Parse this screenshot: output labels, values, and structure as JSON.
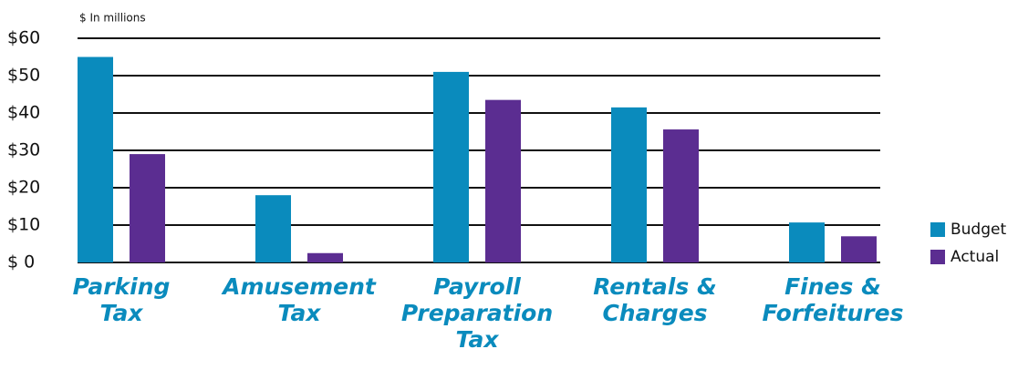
{
  "chart_data": {
    "type": "bar",
    "subtitle": "$ In millions",
    "categories": [
      "Parking\nTax",
      "Amusement\nTax",
      "Payroll\nPreparation\nTax",
      "Rentals &\nCharges",
      "Fines &\nForfeitures"
    ],
    "series": [
      {
        "name": "Budget",
        "color": "#0a8bbd",
        "values": [
          55,
          18,
          51,
          41.5,
          10.7
        ]
      },
      {
        "name": "Actual",
        "color": "#5b2d91",
        "values": [
          29,
          2.5,
          43.5,
          35.6,
          7
        ]
      }
    ],
    "ylim": [
      0,
      60
    ],
    "yticks": [
      {
        "value": 0,
        "label": "$ 0"
      },
      {
        "value": 10,
        "label": "$10"
      },
      {
        "value": 20,
        "label": "$20"
      },
      {
        "value": 30,
        "label": "$30"
      },
      {
        "value": 40,
        "label": "$40"
      },
      {
        "value": 50,
        "label": "$50"
      },
      {
        "value": 60,
        "label": "$60"
      }
    ],
    "grid": true,
    "legend": "right"
  }
}
